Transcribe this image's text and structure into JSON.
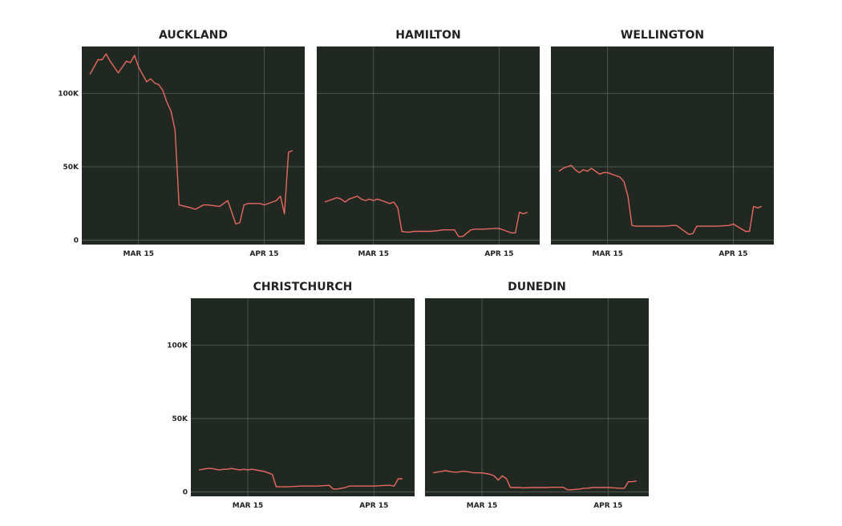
{
  "chart_data": {
    "type": "line",
    "colors": {
      "line": "#e8695e",
      "background": "#212822",
      "grid": "#5f6862"
    },
    "shared_axes": {
      "x_domain": [
        "2020-03-01",
        "2020-04-25"
      ],
      "x_ticks": [
        {
          "date": "2020-03-15",
          "label": "MAR 15"
        },
        {
          "date": "2020-04-15",
          "label": "APR 15"
        }
      ],
      "ylim": [
        -3000,
        132000
      ],
      "y_ticks": [
        {
          "value": 0,
          "label": "0"
        },
        {
          "value": 50000,
          "label": "50K"
        },
        {
          "value": 100000,
          "label": "100K"
        }
      ],
      "grid": true
    },
    "dates": [
      "2020-03-03",
      "2020-03-04",
      "2020-03-05",
      "2020-03-06",
      "2020-03-07",
      "2020-03-08",
      "2020-03-09",
      "2020-03-10",
      "2020-03-11",
      "2020-03-12",
      "2020-03-13",
      "2020-03-14",
      "2020-03-15",
      "2020-03-16",
      "2020-03-17",
      "2020-03-18",
      "2020-03-19",
      "2020-03-20",
      "2020-03-21",
      "2020-03-22",
      "2020-03-23",
      "2020-03-24",
      "2020-03-25",
      "2020-03-28",
      "2020-03-29",
      "2020-03-31",
      "2020-04-01",
      "2020-04-04",
      "2020-04-05",
      "2020-04-06",
      "2020-04-08",
      "2020-04-09",
      "2020-04-10",
      "2020-04-11",
      "2020-04-14",
      "2020-04-15",
      "2020-04-18",
      "2020-04-19",
      "2020-04-20",
      "2020-04-21",
      "2020-04-22"
    ],
    "panels": [
      {
        "name": "AUCKLAND",
        "show_y_ticks": true,
        "values": [
          113000,
          118000,
          123000,
          123000,
          127000,
          122000,
          118000,
          114000,
          118000,
          122000,
          121000,
          126000,
          118000,
          113000,
          108000,
          110000,
          107000,
          106000,
          102000,
          94000,
          88000,
          75000,
          24000,
          22000,
          21000,
          24000,
          24000,
          23000,
          25000,
          27000,
          11000,
          12000,
          24000,
          25000,
          25000,
          24000,
          27000,
          30000,
          18000,
          60000,
          61000
        ]
      },
      {
        "name": "HAMILTON",
        "show_y_ticks": false,
        "values": [
          26000,
          27000,
          28000,
          29000,
          28000,
          26000,
          28000,
          29000,
          30000,
          28000,
          27000,
          28000,
          27000,
          28000,
          27000,
          26000,
          25000,
          26000,
          22000,
          6000,
          5500,
          5500,
          6000,
          6000,
          6000,
          6500,
          7000,
          7000,
          2500,
          2500,
          7000,
          7500,
          7500,
          7500,
          8000,
          8000,
          5000,
          5000,
          19000,
          18000,
          19000
        ]
      },
      {
        "name": "WELLINGTON",
        "show_y_ticks": false,
        "values": [
          47000,
          49000,
          50000,
          51000,
          48000,
          46000,
          48000,
          47000,
          49000,
          47000,
          45000,
          46000,
          46000,
          45000,
          44000,
          43000,
          40000,
          30000,
          10000,
          9500,
          9500,
          9500,
          9500,
          9500,
          9500,
          10000,
          10000,
          4000,
          4500,
          9500,
          9500,
          9500,
          9500,
          9500,
          10000,
          11000,
          6000,
          6000,
          23000,
          22000,
          23000
        ]
      },
      {
        "name": "CHRISTCHURCH",
        "show_y_ticks": true,
        "values": [
          15000,
          15500,
          16000,
          16000,
          15500,
          15000,
          15500,
          15500,
          16000,
          15500,
          15000,
          15500,
          15000,
          15500,
          15000,
          14500,
          14000,
          13000,
          12000,
          3500,
          3500,
          3500,
          3500,
          4000,
          4000,
          4000,
          4000,
          4500,
          2000,
          2000,
          3000,
          4000,
          4000,
          4000,
          4000,
          4000,
          4500,
          4500,
          4000,
          9000,
          9000
        ]
      },
      {
        "name": "DUNEDIN",
        "show_y_ticks": false,
        "values": [
          13000,
          13500,
          14000,
          14500,
          14000,
          13500,
          13500,
          14000,
          14000,
          13500,
          13000,
          13000,
          13000,
          12500,
          12000,
          11000,
          8000,
          11000,
          9000,
          3000,
          3000,
          3000,
          2800,
          3000,
          3000,
          3000,
          3200,
          3200,
          1500,
          1500,
          2000,
          2500,
          2500,
          3000,
          3000,
          3000,
          2500,
          2500,
          7000,
          7000,
          7500
        ]
      }
    ]
  }
}
